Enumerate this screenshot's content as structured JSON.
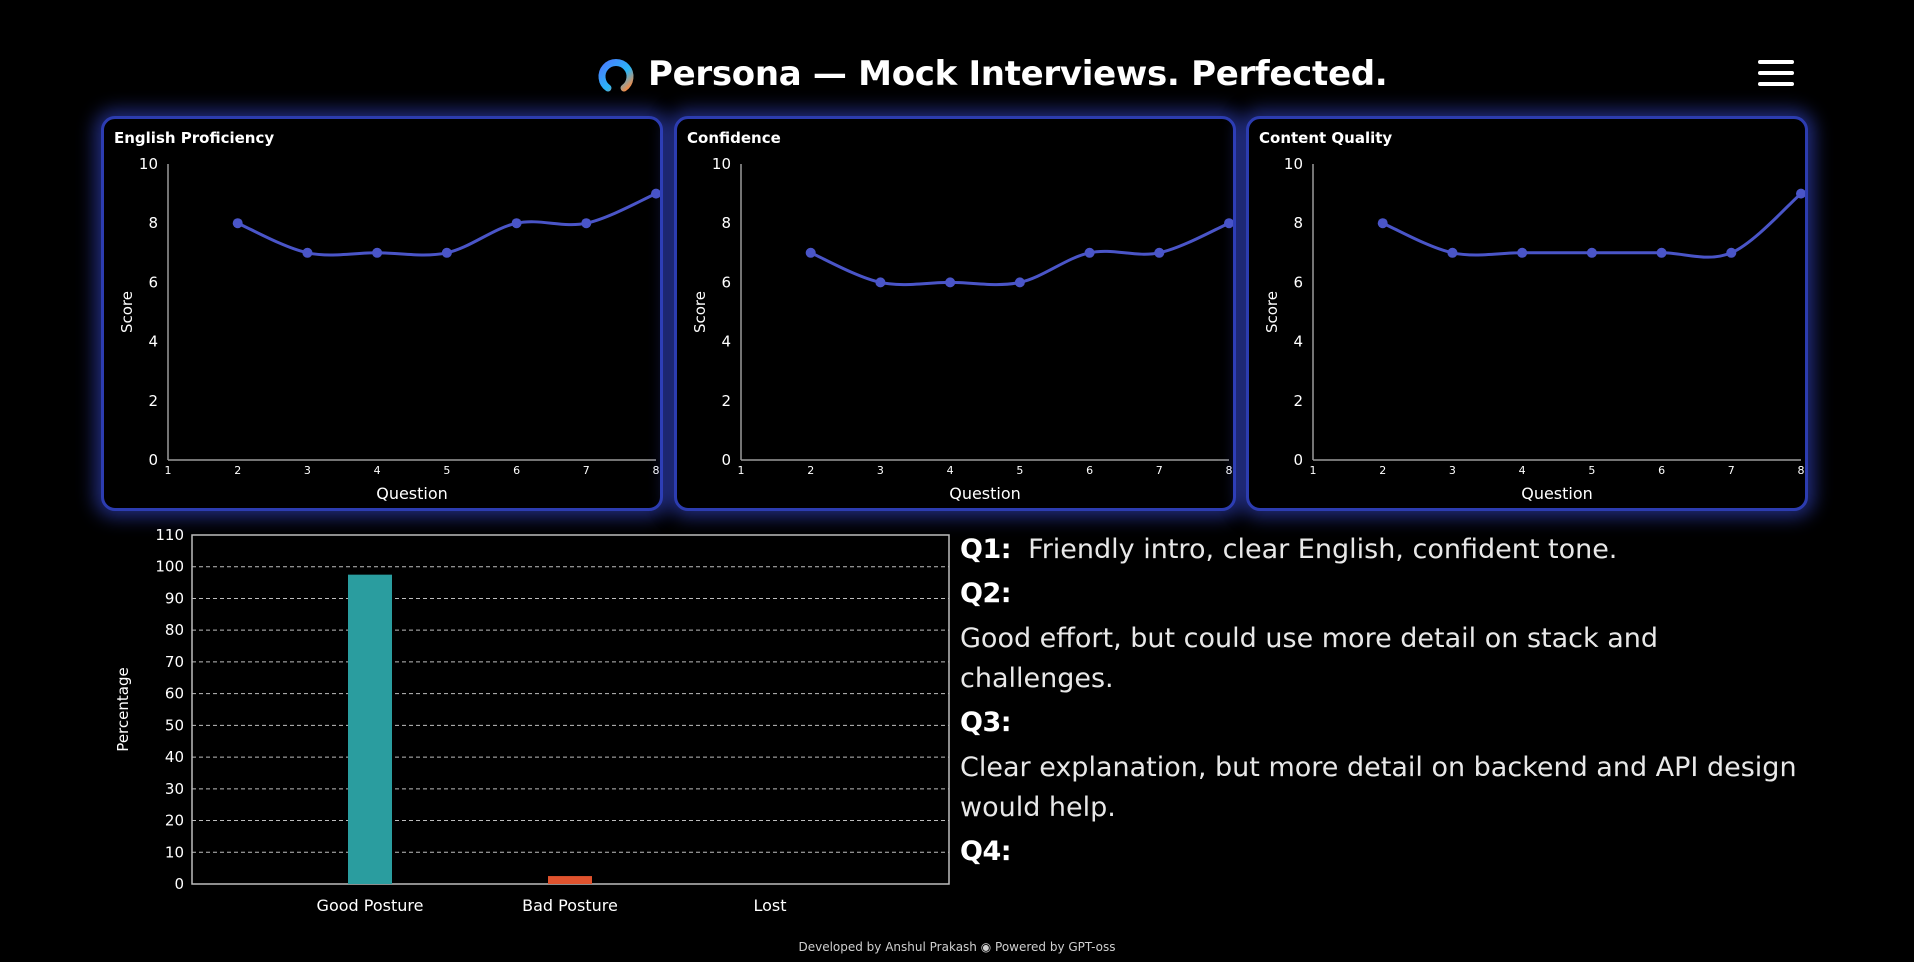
{
  "header": {
    "title": "Persona — Mock Interviews. Perfected.",
    "logo_icon": "persona-ring-logo",
    "menu_icon": "hamburger-menu-icon"
  },
  "colors": {
    "accent": "#2c3cb0",
    "line": "#4a55c8",
    "good_posture": "#2a9d9f",
    "bad_posture": "#e0532e"
  },
  "chart_data": [
    {
      "type": "line",
      "title": "English Proficiency",
      "xlabel": "Question",
      "ylabel": "Score",
      "xlim": [
        1,
        8
      ],
      "ylim": [
        0,
        10
      ],
      "x_ticks": [
        "1",
        "2",
        "3",
        "4",
        "5",
        "6",
        "7",
        "8"
      ],
      "y_ticks": [
        "0",
        "2",
        "4",
        "6",
        "8",
        "10"
      ],
      "x": [
        2,
        3,
        4,
        5,
        6,
        7,
        8
      ],
      "y": [
        8,
        7,
        7,
        7,
        8,
        8,
        9
      ]
    },
    {
      "type": "line",
      "title": "Confidence",
      "xlabel": "Question",
      "ylabel": "Score",
      "xlim": [
        1,
        8
      ],
      "ylim": [
        0,
        10
      ],
      "x_ticks": [
        "1",
        "2",
        "3",
        "4",
        "5",
        "6",
        "7",
        "8"
      ],
      "y_ticks": [
        "0",
        "2",
        "4",
        "6",
        "8",
        "10"
      ],
      "x": [
        2,
        3,
        4,
        5,
        6,
        7,
        8
      ],
      "y": [
        7,
        6,
        6,
        6,
        7,
        7,
        8
      ]
    },
    {
      "type": "line",
      "title": "Content Quality",
      "xlabel": "Question",
      "ylabel": "Score",
      "xlim": [
        1,
        8
      ],
      "ylim": [
        0,
        10
      ],
      "x_ticks": [
        "1",
        "2",
        "3",
        "4",
        "5",
        "6",
        "7",
        "8"
      ],
      "y_ticks": [
        "0",
        "2",
        "4",
        "6",
        "8",
        "10"
      ],
      "x": [
        2,
        3,
        4,
        5,
        6,
        7,
        8
      ],
      "y": [
        8,
        7,
        7,
        7,
        7,
        7,
        9
      ]
    },
    {
      "type": "bar",
      "title": "",
      "xlabel": "",
      "ylabel": "Percentage",
      "ylim": [
        0,
        110
      ],
      "y_ticks": [
        "0",
        "10",
        "20",
        "30",
        "40",
        "50",
        "60",
        "70",
        "80",
        "90",
        "100",
        "110"
      ],
      "grid": true,
      "categories": [
        "Good Posture",
        "Bad Posture",
        "Lost"
      ],
      "values": [
        97.5,
        2.5,
        0
      ]
    }
  ],
  "feedback": [
    {
      "q": "Q1:",
      "text": "Friendly intro, clear English, confident tone."
    },
    {
      "q": "Q2:",
      "text": "Good effort, but could use more detail on stack and challenges."
    },
    {
      "q": "Q3:",
      "text": "Clear explanation, but more detail on backend and API design would help."
    },
    {
      "q": "Q4:",
      "text": ""
    }
  ],
  "footer": {
    "text": "Developed by Anshul Prakash ◉ Powered by GPT-oss"
  }
}
